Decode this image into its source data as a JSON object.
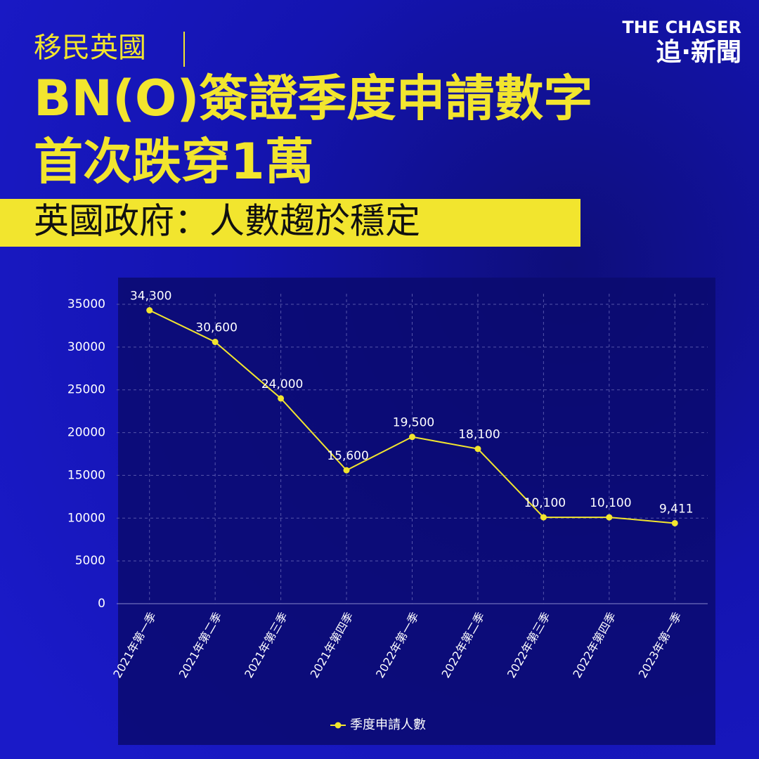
{
  "header": {
    "kicker": "移民英國",
    "title_line1": "BN(O)簽證季度申請數字",
    "title_line2": "首次跌穿1萬",
    "subtitle": "英國政府：人數趨於穩定",
    "logo_top": "THE CHASER",
    "logo_bottom": "追·新聞"
  },
  "chart_data": {
    "type": "line",
    "categories": [
      "2021年第一季",
      "2021年第二季",
      "2021年第三季",
      "2021年第四季",
      "2022年第一季",
      "2022年第二季",
      "2022年第三季",
      "2022年第四季",
      "2023年第一季"
    ],
    "series": [
      {
        "name": "季度申請人數",
        "color": "#f2e52e",
        "values": [
          34300,
          30600,
          24000,
          15600,
          19500,
          18100,
          10100,
          10100,
          9411
        ],
        "value_labels": [
          "34,300",
          "30,600",
          "24,000",
          "15,600",
          "19,500",
          "18,100",
          "10,100",
          "10,100",
          "9,411"
        ]
      }
    ],
    "ylim": [
      0,
      35000
    ],
    "yticks": [
      0,
      5000,
      10000,
      15000,
      20000,
      25000,
      30000,
      35000
    ],
    "grid": true,
    "legend": "bottom"
  }
}
